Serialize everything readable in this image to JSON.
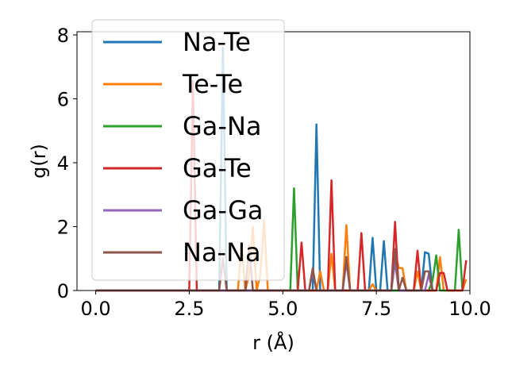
{
  "chart_data": {
    "type": "line",
    "xlabel": "r (Å)",
    "ylabel": "g(r)",
    "xlim": [
      -0.5,
      10.0
    ],
    "ylim": [
      0,
      8.1
    ],
    "x_ticks": [
      0.0,
      2.5,
      5.0,
      7.5,
      10.0
    ],
    "x_tick_labels": [
      "0.0",
      "2.5",
      "5.0",
      "7.5",
      "10.0"
    ],
    "y_ticks": [
      0,
      2,
      4,
      6,
      8
    ],
    "y_tick_labels": [
      "0",
      "2",
      "4",
      "6",
      "8"
    ],
    "grid": false,
    "legend_position": "upper-left",
    "series": [
      {
        "name": "Na-Te",
        "color": "#1f77b4",
        "x": [
          0.0,
          3.3,
          3.4,
          3.5,
          5.8,
          5.9,
          6.0,
          7.3,
          7.4,
          7.5,
          7.6,
          7.7,
          7.8,
          8.7,
          8.8,
          8.9,
          9.0
        ],
        "y": [
          0.0,
          0.0,
          7.6,
          0.0,
          0.0,
          5.2,
          0.0,
          0.0,
          1.65,
          0.0,
          0.0,
          1.55,
          0.0,
          0.0,
          1.2,
          1.15,
          0.0
        ]
      },
      {
        "name": "Te-Te",
        "color": "#ff7f0e",
        "x": [
          0.0,
          3.8,
          3.9,
          4.0,
          4.1,
          4.2,
          4.3,
          4.4,
          4.5,
          4.6,
          5.9,
          6.0,
          6.1,
          6.2,
          6.3,
          6.4,
          6.6,
          6.7,
          6.8,
          7.3,
          7.4,
          7.5,
          7.9,
          8.0,
          8.1,
          8.2,
          8.3,
          8.5,
          8.6,
          8.7,
          9.1,
          9.2,
          9.3,
          9.8,
          9.9
        ],
        "y": [
          0.0,
          0.0,
          1.5,
          0.0,
          0.5,
          2.0,
          0.0,
          0.5,
          2.2,
          0.0,
          0.0,
          0.6,
          0.0,
          0.0,
          1.15,
          0.0,
          0.0,
          2.05,
          0.0,
          0.0,
          0.2,
          0.0,
          0.0,
          1.2,
          0.7,
          0.7,
          0.0,
          0.0,
          0.6,
          0.0,
          0.0,
          1.05,
          0.0,
          0.0,
          0.35
        ]
      },
      {
        "name": "Ga-Na",
        "color": "#2ca02c",
        "x": [
          0.0,
          5.2,
          5.3,
          5.4,
          8.9,
          9.0,
          9.1,
          9.2,
          9.6,
          9.7,
          9.8
        ],
        "y": [
          0.0,
          0.0,
          3.2,
          0.0,
          0.0,
          0.3,
          1.1,
          0.0,
          0.0,
          1.9,
          0.0
        ]
      },
      {
        "name": "Ga-Te",
        "color": "#d62728",
        "x": [
          0.0,
          2.5,
          2.6,
          2.7,
          5.4,
          5.5,
          5.6,
          6.2,
          6.3,
          6.4,
          7.0,
          7.1,
          7.2,
          7.9,
          8.0,
          8.1,
          8.5,
          8.6,
          8.7,
          9.1,
          9.2,
          9.3,
          9.4,
          9.5,
          9.8,
          9.9
        ],
        "y": [
          0.0,
          0.0,
          6.55,
          0.0,
          0.0,
          1.5,
          0.0,
          0.0,
          3.45,
          0.0,
          0.0,
          1.8,
          0.0,
          0.0,
          2.15,
          0.0,
          0.0,
          1.25,
          0.0,
          0.0,
          0.55,
          0.55,
          0.0,
          0.0,
          0.0,
          0.95
        ]
      },
      {
        "name": "Ga-Ga",
        "color": "#9467bd",
        "x": [
          0.0,
          5.7,
          5.8,
          5.9,
          6.6,
          6.7,
          6.8,
          7.9,
          8.0,
          8.1,
          8.8,
          8.9,
          9.0
        ],
        "y": [
          0.0,
          0.0,
          0.6,
          0.0,
          0.0,
          0.9,
          0.0,
          0.0,
          0.9,
          0.0,
          0.0,
          0.5,
          0.0
        ]
      },
      {
        "name": "Na-Na",
        "color": "#8c564b",
        "x": [
          0.0,
          3.3,
          3.4,
          3.5,
          4.0,
          4.1,
          4.2,
          5.7,
          5.8,
          5.9,
          6.6,
          6.7,
          6.8,
          7.9,
          8.0,
          8.1,
          8.2,
          8.3,
          8.7,
          8.8,
          8.9,
          9.0
        ],
        "y": [
          0.0,
          0.0,
          1.0,
          0.0,
          0.0,
          1.4,
          0.0,
          0.0,
          0.7,
          0.0,
          0.0,
          1.05,
          0.0,
          0.0,
          1.3,
          0.0,
          0.4,
          0.0,
          0.0,
          0.6,
          0.6,
          0.0
        ]
      }
    ]
  }
}
